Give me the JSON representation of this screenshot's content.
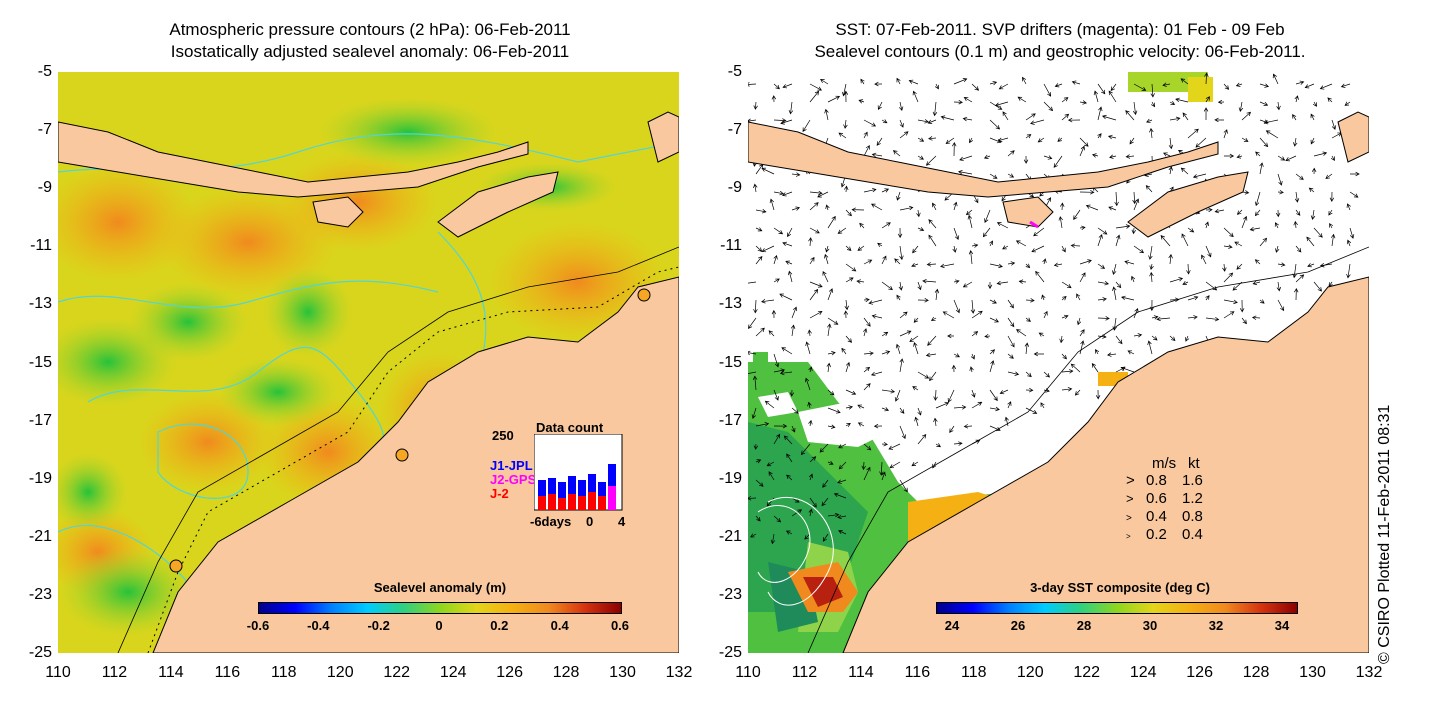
{
  "left": {
    "title_line1": "Atmospheric pressure contours (2 hPa): 06-Feb-2011",
    "title_line2": "Isostatically adjusted sealevel anomaly: 06-Feb-2011",
    "colorbar_title": "Sealevel anomaly (m)",
    "colorbar_ticks": [
      "-0.6",
      "-0.4",
      "-0.2",
      "0",
      "0.2",
      "0.4",
      "0.6"
    ],
    "inset": {
      "title": "Data count",
      "ymax": "250",
      "legend": [
        "J1-JPL",
        "J2-GPS",
        "J-2"
      ],
      "xticks": [
        "-6days",
        "0",
        "4"
      ],
      "colors": {
        "J1-JPL": "#0000ff",
        "J2-GPS": "#ff00ff",
        "J-2": "#ff0000"
      }
    }
  },
  "right": {
    "title_line1": "SST: 07-Feb-2011. SVP drifters (magenta): 01 Feb - 09 Feb",
    "title_line2": "Sealevel contours (0.1 m) and geostrophic velocity: 06-Feb-2011.",
    "colorbar_title": "3-day SST composite (deg C)",
    "colorbar_ticks": [
      "24",
      "26",
      "28",
      "30",
      "32",
      "34"
    ],
    "velocity_legend": {
      "header_ms": "m/s",
      "header_kt": "kt",
      "rows": [
        {
          "ms": "0.8",
          "kt": "1.6"
        },
        {
          "ms": "0.6",
          "kt": "1.2"
        },
        {
          "ms": "0.4",
          "kt": "0.8"
        },
        {
          "ms": "0.2",
          "kt": "0.4"
        }
      ]
    }
  },
  "axes": {
    "lat_ticks": [
      "-5",
      "-7",
      "-9",
      "-11",
      "-13",
      "-15",
      "-17",
      "-19",
      "-21",
      "-23",
      "-25"
    ],
    "lon_ticks": [
      "110",
      "112",
      "114",
      "116",
      "118",
      "120",
      "122",
      "124",
      "126",
      "128",
      "130",
      "132"
    ]
  },
  "credit": "© CSIRO Plotted 11-Feb-2011 08:31",
  "colors": {
    "land": "#f9c89e",
    "coast": "#000000",
    "sla_contour": "#4fd6d6",
    "drifter": "#ff00ff"
  }
}
